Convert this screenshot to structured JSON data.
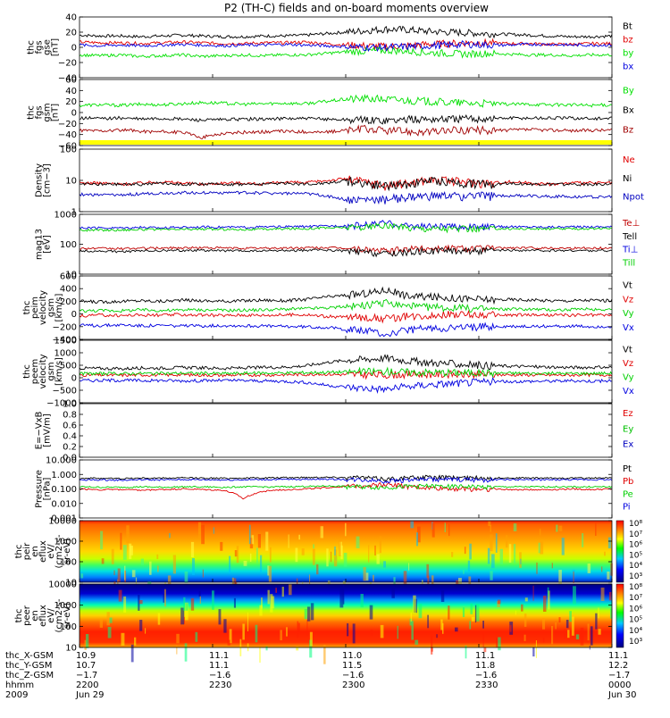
{
  "title": "P2 (TH-C) fields and on-board moments overview",
  "chart_data": [
    {
      "type": "line",
      "panel": "fgs_gse",
      "ylabel": [
        "thc",
        "fgs",
        "gse",
        "[nT]"
      ],
      "yticks": [
        "40",
        "20",
        "0",
        "−20",
        "−40"
      ],
      "ylim": [
        -40,
        40
      ],
      "series": [
        {
          "name": "Bt",
          "color": "#000000",
          "values": [
            16,
            15,
            15,
            14,
            15,
            16,
            15,
            14,
            14,
            15,
            15,
            16,
            18,
            20,
            22,
            24,
            23,
            21,
            20,
            19,
            18,
            17,
            16,
            15,
            14,
            14,
            15
          ]
        },
        {
          "name": "bz",
          "color": "#e00000",
          "values": [
            7,
            6,
            6,
            5,
            6,
            7,
            6,
            5,
            5,
            6,
            6,
            7,
            5,
            3,
            2,
            1,
            2,
            4,
            5,
            6,
            6,
            5,
            5,
            4,
            4,
            5,
            5
          ]
        },
        {
          "name": "by",
          "color": "#00e000",
          "values": [
            -10,
            -11,
            -10,
            -12,
            -11,
            -10,
            -12,
            -11,
            -10,
            -11,
            -10,
            -10,
            -8,
            -6,
            -5,
            -4,
            -5,
            -7,
            -8,
            -9,
            -8,
            -9,
            -10,
            -10,
            -11,
            -10,
            -10
          ]
        },
        {
          "name": "bx",
          "color": "#0000e0",
          "values": [
            3,
            2,
            3,
            2,
            3,
            4,
            3,
            2,
            3,
            3,
            4,
            3,
            2,
            1,
            0,
            0,
            1,
            2,
            3,
            4,
            3,
            3,
            4,
            4,
            3,
            3,
            3
          ]
        }
      ]
    },
    {
      "type": "line",
      "panel": "fgs_gsm",
      "ylabel": [
        "thc",
        "fgs",
        "gsm",
        "[nT]"
      ],
      "yticks": [
        "60",
        "40",
        "20",
        "0",
        "−20",
        "−40",
        "−60"
      ],
      "ylim": [
        -60,
        60
      ],
      "series": [
        {
          "name": "By",
          "color": "#00e000",
          "values": [
            13,
            14,
            13,
            15,
            14,
            16,
            18,
            17,
            15,
            16,
            17,
            16,
            20,
            24,
            25,
            24,
            22,
            20,
            18,
            17,
            16,
            15,
            15,
            14,
            14,
            13,
            14
          ]
        },
        {
          "name": "Bx",
          "color": "#000000",
          "values": [
            -10,
            -11,
            -10,
            -12,
            -11,
            -12,
            -14,
            -13,
            -12,
            -12,
            -11,
            -11,
            -12,
            -13,
            -14,
            -14,
            -13,
            -12,
            -12,
            -11,
            -11,
            -10,
            -10,
            -10,
            -10,
            -11,
            -11
          ]
        },
        {
          "name": "Bz",
          "color": "#a00000",
          "values": [
            -32,
            -33,
            -32,
            -34,
            -35,
            -36,
            -45,
            -38,
            -36,
            -35,
            -34,
            -35,
            -36,
            -32,
            -30,
            -33,
            -34,
            -36,
            -33,
            -32,
            -33,
            -32,
            -31,
            -32,
            -33,
            -32,
            -32
          ]
        }
      ]
    },
    {
      "type": "line",
      "panel": "density",
      "ylabel": [
        "Density",
        "[cm−3]"
      ],
      "yticks": [
        "100",
        "10",
        "1"
      ],
      "yscale": "log",
      "ylim": [
        1,
        150
      ],
      "series": [
        {
          "name": "Ne",
          "color": "#e00000",
          "values": [
            10,
            10,
            9,
            10,
            11,
            10,
            9,
            10,
            10,
            9,
            11,
            10,
            12,
            14,
            11,
            8,
            10,
            13,
            12,
            11,
            10,
            11,
            10,
            9,
            10,
            10,
            10
          ]
        },
        {
          "name": "Ni",
          "color": "#000000",
          "values": [
            9,
            9,
            9,
            9,
            10,
            9,
            9,
            9,
            9,
            9,
            10,
            9,
            10,
            12,
            10,
            8,
            9,
            12,
            11,
            10,
            9,
            10,
            9,
            9,
            9,
            9,
            9
          ]
        },
        {
          "name": "Npot",
          "color": "#0000c0",
          "values": [
            4,
            3.8,
            3.8,
            4.2,
            4.4,
            4.6,
            4.6,
            4.6,
            4.6,
            4.5,
            4.4,
            4.2,
            3.6,
            2.6,
            2.6,
            2.8,
            3.2,
            3.4,
            3.6,
            3.6,
            3.6,
            3.6,
            3.6,
            3.4,
            3.4,
            3.3,
            3.3
          ]
        }
      ]
    },
    {
      "type": "line",
      "panel": "temperature",
      "ylabel": [
        "mag13",
        "[eV]"
      ],
      "yticks": [
        "1000",
        "100",
        "10"
      ],
      "yscale": "log",
      "ylim": [
        5,
        3000
      ],
      "series": [
        {
          "name": "Te⊥",
          "color": "#c00000",
          "values": [
            80,
            78,
            76,
            80,
            82,
            84,
            85,
            82,
            80,
            80,
            82,
            84,
            86,
            80,
            70,
            60,
            75,
            82,
            84,
            84,
            82,
            84,
            83,
            82,
            82,
            82,
            82
          ]
        },
        {
          "name": "Tell",
          "color": "#000000",
          "values": [
            60,
            58,
            56,
            60,
            62,
            64,
            65,
            62,
            60,
            60,
            62,
            64,
            66,
            60,
            52,
            45,
            55,
            62,
            64,
            64,
            62,
            64,
            63,
            62,
            62,
            62,
            62
          ]
        },
        {
          "name": "Ti⊥",
          "color": "#0000e0",
          "values": [
            700,
            700,
            720,
            750,
            720,
            760,
            780,
            760,
            750,
            780,
            800,
            820,
            850,
            900,
            1000,
            1200,
            900,
            850,
            820,
            800,
            800,
            800,
            780,
            780,
            780,
            800,
            800
          ]
        },
        {
          "name": "Till",
          "color": "#00d000",
          "values": [
            550,
            560,
            560,
            600,
            580,
            600,
            620,
            600,
            600,
            610,
            640,
            660,
            700,
            740,
            800,
            900,
            740,
            700,
            670,
            650,
            650,
            650,
            640,
            640,
            640,
            650,
            650
          ]
        }
      ]
    },
    {
      "type": "line",
      "panel": "peim_velocity",
      "ylabel": [
        "thc",
        "peim",
        "velocity",
        "gsm",
        "[km/s]"
      ],
      "yticks": [
        "600",
        "400",
        "200",
        "0",
        "−200",
        "−400"
      ],
      "ylim": [
        -400,
        650
      ],
      "series": [
        {
          "name": "Vt",
          "color": "#000000",
          "values": [
            230,
            220,
            230,
            240,
            230,
            250,
            240,
            230,
            240,
            250,
            240,
            260,
            300,
            330,
            360,
            420,
            320,
            300,
            290,
            270,
            260,
            260,
            250,
            240,
            240,
            250,
            240
          ]
        },
        {
          "name": "Vz",
          "color": "#e00000",
          "values": [
            -10,
            0,
            -5,
            5,
            0,
            10,
            0,
            -5,
            5,
            0,
            5,
            10,
            -20,
            -30,
            -40,
            -60,
            -20,
            0,
            10,
            5,
            0,
            0,
            5,
            0,
            0,
            5,
            0
          ]
        },
        {
          "name": "Vy",
          "color": "#00d000",
          "values": [
            70,
            80,
            75,
            90,
            80,
            85,
            90,
            80,
            85,
            90,
            100,
            110,
            120,
            140,
            160,
            200,
            150,
            130,
            120,
            110,
            100,
            100,
            100,
            90,
            90,
            100,
            100
          ]
        },
        {
          "name": "Vx",
          "color": "#0000e0",
          "values": [
            -170,
            -170,
            -160,
            -175,
            -170,
            -180,
            -175,
            -170,
            -175,
            -180,
            -185,
            -190,
            -200,
            -230,
            -260,
            -320,
            -250,
            -220,
            -210,
            -200,
            -190,
            -190,
            -185,
            -180,
            -180,
            -190,
            -185
          ]
        }
      ]
    },
    {
      "type": "line",
      "panel": "peem_velocity",
      "ylabel": [
        "thc",
        "peem",
        "velocity",
        "gsm",
        "[km/s]"
      ],
      "yticks": [
        "1500",
        "1000",
        "500",
        "0",
        "−500",
        "−1000"
      ],
      "ylim": [
        -1200,
        1600
      ],
      "series": [
        {
          "name": "Vt",
          "color": "#000000",
          "values": [
            350,
            340,
            320,
            360,
            350,
            380,
            360,
            340,
            360,
            380,
            400,
            450,
            600,
            700,
            750,
            800,
            680,
            600,
            550,
            500,
            460,
            440,
            420,
            400,
            380,
            390,
            380
          ]
        },
        {
          "name": "Vz",
          "color": "#e00000",
          "values": [
            50,
            40,
            30,
            50,
            40,
            60,
            40,
            30,
            50,
            40,
            60,
            70,
            80,
            60,
            50,
            40,
            70,
            80,
            70,
            60,
            60,
            50,
            50,
            40,
            40,
            50,
            50
          ]
        },
        {
          "name": "Vy",
          "color": "#00d000",
          "values": [
            100,
            110,
            100,
            120,
            110,
            130,
            120,
            110,
            120,
            130,
            140,
            150,
            160,
            180,
            190,
            200,
            170,
            160,
            150,
            140,
            130,
            130,
            120,
            120,
            110,
            120,
            120
          ]
        },
        {
          "name": "Vx",
          "color": "#0000e0",
          "values": [
            -200,
            -200,
            -190,
            -210,
            -200,
            -220,
            -210,
            -200,
            -210,
            -220,
            -240,
            -280,
            -400,
            -500,
            -550,
            -600,
            -480,
            -400,
            -350,
            -300,
            -260,
            -250,
            -240,
            -230,
            -220,
            -230,
            -220
          ]
        }
      ]
    },
    {
      "type": "line",
      "panel": "efield",
      "ylabel": [
        "E=−VxB",
        "[mV/m]"
      ],
      "yticks": [
        "1.0",
        "0.8",
        "0.6",
        "0.4",
        "0.2",
        "0.0"
      ],
      "ylim": [
        0,
        1.0
      ],
      "series": [
        {
          "name": "Ez",
          "color": "#e00000",
          "values": []
        },
        {
          "name": "Ey",
          "color": "#00c000",
          "values": []
        },
        {
          "name": "Ex",
          "color": "#0000c0",
          "values": []
        }
      ]
    },
    {
      "type": "line",
      "panel": "pressure",
      "ylabel": [
        "Pressure",
        "[nPa]"
      ],
      "yticks": [
        "10.000",
        "1.000",
        "0.100",
        "0.010",
        "0.001"
      ],
      "yscale": "log",
      "ylim": [
        0.001,
        10
      ],
      "series": [
        {
          "name": "Pt",
          "color": "#000000",
          "values": [
            0.55,
            0.55,
            0.52,
            0.56,
            0.55,
            0.58,
            0.56,
            0.55,
            0.56,
            0.58,
            0.6,
            0.62,
            0.65,
            0.62,
            0.6,
            0.5,
            0.6,
            0.64,
            0.62,
            0.6,
            0.58,
            0.58,
            0.57,
            0.56,
            0.56,
            0.57,
            0.56
          ]
        },
        {
          "name": "Pb",
          "color": "#e00000",
          "values": [
            0.1,
            0.09,
            0.09,
            0.08,
            0.09,
            0.1,
            0.09,
            0.08,
            0.02,
            0.07,
            0.09,
            0.1,
            0.12,
            0.15,
            0.18,
            0.22,
            0.15,
            0.12,
            0.11,
            0.1,
            0.1,
            0.09,
            0.09,
            0.09,
            0.1,
            0.09,
            0.1
          ]
        },
        {
          "name": "Pe",
          "color": "#00d000",
          "values": [
            0.14,
            0.13,
            0.13,
            0.14,
            0.13,
            0.14,
            0.14,
            0.13,
            0.14,
            0.14,
            0.14,
            0.15,
            0.16,
            0.15,
            0.14,
            0.13,
            0.15,
            0.16,
            0.15,
            0.15,
            0.14,
            0.14,
            0.14,
            0.14,
            0.14,
            0.14,
            0.14
          ]
        },
        {
          "name": "Pi",
          "color": "#0000e0",
          "values": [
            0.42,
            0.42,
            0.4,
            0.43,
            0.42,
            0.44,
            0.43,
            0.42,
            0.43,
            0.44,
            0.45,
            0.47,
            0.48,
            0.45,
            0.43,
            0.35,
            0.44,
            0.47,
            0.46,
            0.45,
            0.44,
            0.44,
            0.43,
            0.43,
            0.43,
            0.44,
            0.43
          ]
        }
      ]
    },
    {
      "type": "heatmap",
      "panel": "peir_en_eflux",
      "ylabel": [
        "thc",
        "peir",
        "en",
        "eflux",
        "eV/",
        "(cm2-s-",
        "sr-eV)"
      ],
      "yticks": [
        "10000",
        "1000",
        "100",
        "10"
      ],
      "yscale": "log",
      "ylim": [
        7,
        20000
      ],
      "colorbar_ticks": [
        "10⁸",
        "10⁷",
        "10⁶",
        "10⁵",
        "10⁴",
        "10³"
      ]
    },
    {
      "type": "heatmap",
      "panel": "peer_en_eflux",
      "ylabel": [
        "thc",
        "peer",
        "en",
        "eflux",
        "eV/",
        "(cm2-s-",
        "sr-eV)"
      ],
      "yticks": [
        "10000",
        "1000",
        "100",
        "10"
      ],
      "yscale": "log",
      "ylim": [
        7,
        20000
      ],
      "colorbar_ticks": [
        "10⁸",
        "10⁷",
        "10⁶",
        "10⁵",
        "10⁴",
        "10³"
      ]
    }
  ],
  "xaxis": {
    "row_labels": [
      "thc_X-GSM",
      "thc_Y-GSM",
      "thc_Z-GSM",
      "hhmm",
      "2009"
    ],
    "columns": [
      {
        "values": [
          "10.9",
          "10.7",
          "−1.7",
          "2200",
          "Jun 29"
        ]
      },
      {
        "values": [
          "11.1",
          "11.1",
          "−1.6",
          "2230",
          ""
        ]
      },
      {
        "values": [
          "11.0",
          "11.5",
          "−1.6",
          "2300",
          ""
        ]
      },
      {
        "values": [
          "11.1",
          "11.8",
          "−1.6",
          "2330",
          ""
        ]
      },
      {
        "values": [
          "11.1",
          "12.2",
          "−1.7",
          "0000",
          "Jun 30"
        ]
      }
    ]
  }
}
